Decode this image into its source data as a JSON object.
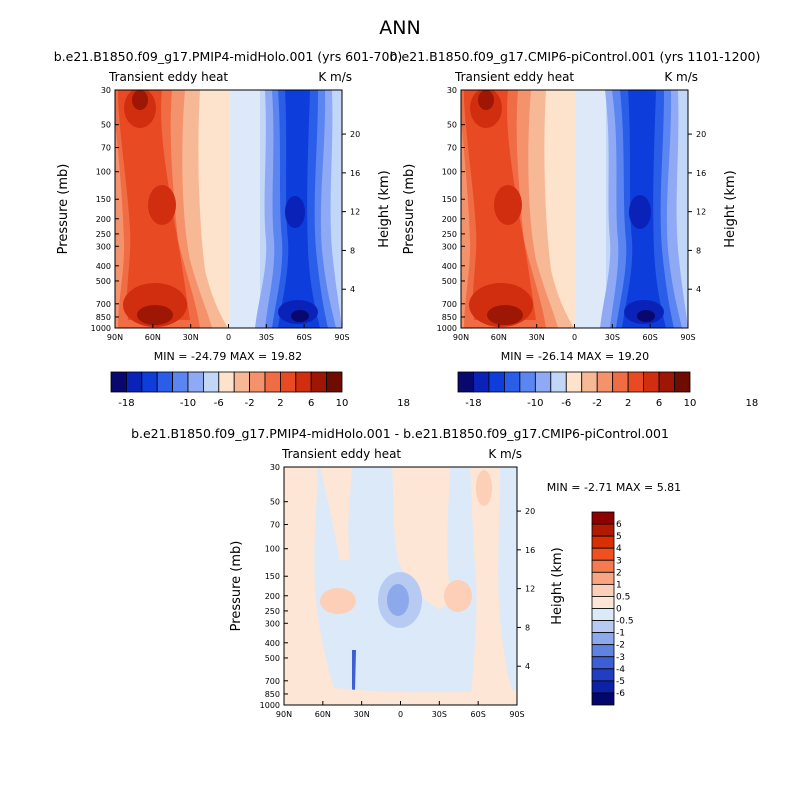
{
  "figure_title": "ANN",
  "chart_data": [
    {
      "type": "heatmap",
      "title": "b.e21.B1850.f09_g17.PMIP4-midHolo.001 (yrs 601-700)",
      "subtitle_left": "Transient eddy heat",
      "subtitle_right": "K m/s",
      "ylabel": "Pressure (mb)",
      "ylabel_right": "Height (km)",
      "yticks": [
        "30",
        "50",
        "70",
        "100",
        "150",
        "200",
        "250",
        "300",
        "400",
        "500",
        "700",
        "850",
        "1000"
      ],
      "yticks_right": [
        "20",
        "16",
        "12",
        "8",
        "4"
      ],
      "xticks": [
        "90N",
        "60N",
        "30N",
        "0",
        "30S",
        "60S",
        "90S"
      ],
      "minmax": "MIN = -24.79  MAX =  19.82",
      "levels": [
        -18,
        -16,
        -14,
        -12,
        -10,
        -8,
        -6,
        -4,
        -2,
        0,
        2,
        4,
        6,
        8,
        10,
        12,
        14,
        16,
        18
      ],
      "colorbar_labels": [
        "-18",
        "-10",
        "-6",
        "-2",
        "2",
        "6",
        "10",
        "18"
      ]
    },
    {
      "type": "heatmap",
      "title": "b.e21.B1850.f09_g17.CMIP6-piControl.001 (yrs 1101-1200)",
      "subtitle_left": "Transient eddy heat",
      "subtitle_right": "K m/s",
      "ylabel": "Pressure (mb)",
      "ylabel_right": "Height (km)",
      "yticks": [
        "30",
        "50",
        "70",
        "100",
        "150",
        "200",
        "250",
        "300",
        "400",
        "500",
        "700",
        "850",
        "1000"
      ],
      "yticks_right": [
        "20",
        "16",
        "12",
        "8",
        "4"
      ],
      "xticks": [
        "90N",
        "60N",
        "30N",
        "0",
        "30S",
        "60S",
        "90S"
      ],
      "minmax": "MIN = -26.14  MAX =  19.20",
      "levels": [
        -18,
        -16,
        -14,
        -12,
        -10,
        -8,
        -6,
        -4,
        -2,
        0,
        2,
        4,
        6,
        8,
        10,
        12,
        14,
        16,
        18
      ],
      "colorbar_labels": [
        "-18",
        "-10",
        "-6",
        "-2",
        "2",
        "6",
        "10",
        "18"
      ]
    },
    {
      "type": "heatmap",
      "title": "b.e21.B1850.f09_g17.PMIP4-midHolo.001 - b.e21.B1850.f09_g17.CMIP6-piControl.001",
      "subtitle_left": "Transient eddy heat",
      "subtitle_right": "K m/s",
      "ylabel": "Pressure (mb)",
      "ylabel_right": "Height (km)",
      "yticks": [
        "30",
        "50",
        "70",
        "100",
        "150",
        "200",
        "250",
        "300",
        "400",
        "500",
        "700",
        "850",
        "1000"
      ],
      "yticks_right": [
        "20",
        "16",
        "12",
        "8",
        "4"
      ],
      "xticks": [
        "90N",
        "60N",
        "30N",
        "0",
        "30S",
        "60S",
        "90S"
      ],
      "minmax": "MIN =  -2.71  MAX =   5.81",
      "levels": [
        -6,
        -5,
        -4,
        -3,
        -2,
        -1,
        -0.5,
        0,
        0.5,
        1,
        2,
        3,
        4,
        5,
        6
      ],
      "colorbar_labels": [
        "6",
        "5",
        "4",
        "3",
        "2",
        "1",
        "0.5",
        "0",
        "-0.5",
        "-1",
        "-2",
        "-3",
        "-4",
        "-5",
        "-6"
      ]
    }
  ],
  "colors": {
    "div14": [
      "#08086e",
      "#0a22b8",
      "#0d3ddb",
      "#2a5de8",
      "#5b85f0",
      "#8fa9f4",
      "#c2d6f7",
      "#fde3cc",
      "#f7b896",
      "#f4926c",
      "#f06c45",
      "#e84b24",
      "#d12e10",
      "#9e1604",
      "#6e0c02"
    ],
    "diff": [
      "#8e0000",
      "#b01a00",
      "#d83000",
      "#f05020",
      "#f47a50",
      "#f9a582",
      "#fccfb6",
      "#fde6d6",
      "#dce9f8",
      "#b7cbf2",
      "#8ca9ec",
      "#6083e2",
      "#3c5fd6",
      "#1f3ec4",
      "#0d20a8",
      "#04066e"
    ]
  }
}
